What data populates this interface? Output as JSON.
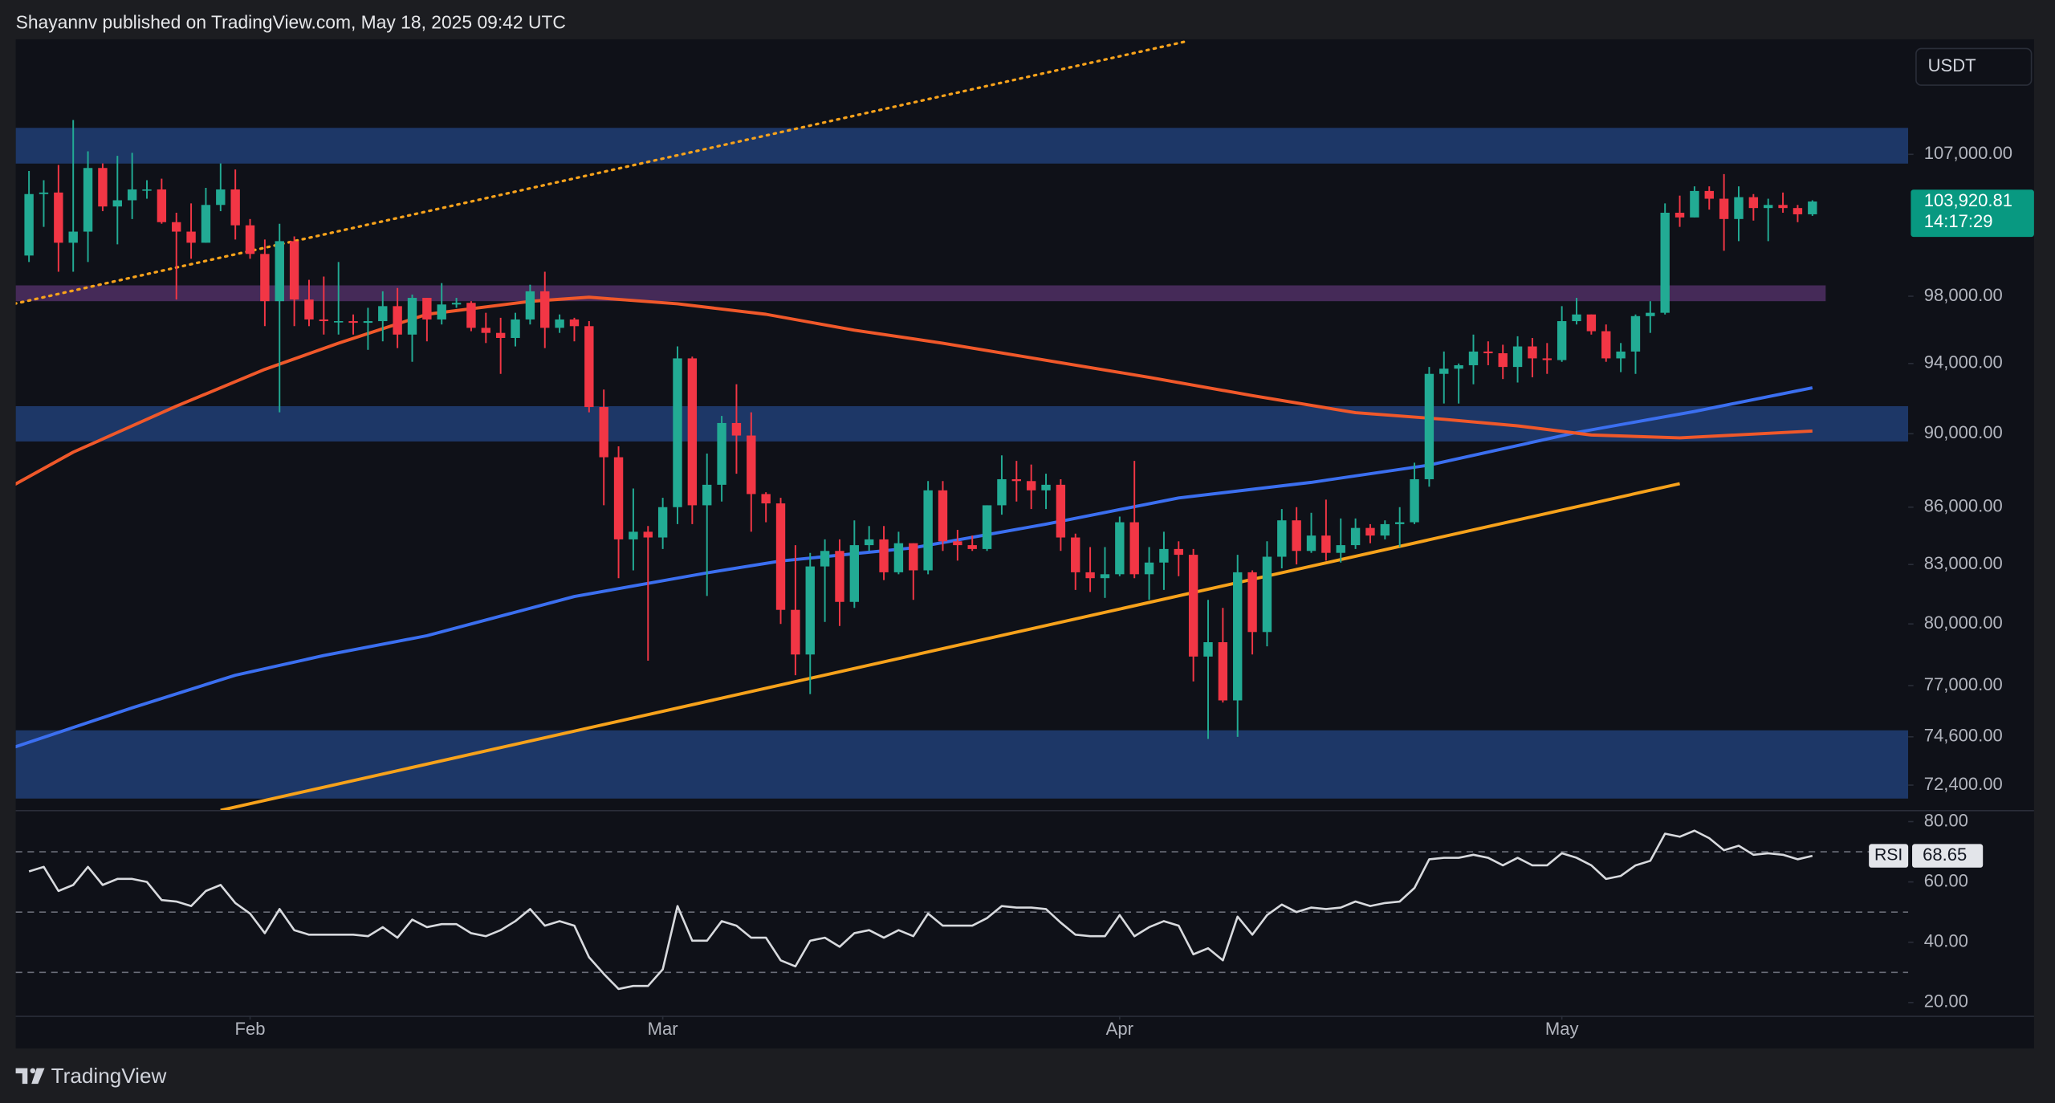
{
  "header": {
    "publisher": "Shayannv published on TradingView.com, May 18, 2025 09:42 UTC"
  },
  "currency": "USDT",
  "footer": {
    "brand": "TradingView"
  },
  "chart_data": [
    {
      "type": "candlestick",
      "log": true,
      "grid": false,
      "up_color": "#22ab94",
      "down_color": "#f23645",
      "xlim": [
        -0.9,
        127.5
      ],
      "ylim": [
        71760,
        114900
      ],
      "yticks": [
        {
          "value": 107000,
          "label": "107,000.00"
        },
        {
          "value": 98000,
          "label": "98,000.00"
        },
        {
          "value": 94000,
          "label": "94,000.00"
        },
        {
          "value": 90000,
          "label": "90,000.00"
        },
        {
          "value": 86000,
          "label": "86,000.00"
        },
        {
          "value": 83000,
          "label": "83,000.00"
        },
        {
          "value": 80000,
          "label": "80,000.00"
        },
        {
          "value": 77000,
          "label": "77,000.00"
        },
        {
          "value": 74600,
          "label": "74,600.00"
        },
        {
          "value": 72400,
          "label": "72,400.00"
        }
      ],
      "categories": [
        null,
        null,
        null,
        null,
        null,
        null,
        null,
        null,
        null,
        null,
        null,
        null,
        null,
        null,
        null,
        "Feb",
        null,
        null,
        null,
        null,
        null,
        null,
        null,
        null,
        null,
        null,
        null,
        null,
        null,
        null,
        null,
        null,
        null,
        null,
        null,
        null,
        null,
        null,
        null,
        null,
        null,
        null,
        null,
        "Mar",
        null,
        null,
        null,
        null,
        null,
        null,
        null,
        null,
        null,
        null,
        null,
        null,
        null,
        null,
        null,
        null,
        null,
        null,
        null,
        null,
        null,
        null,
        null,
        null,
        null,
        null,
        null,
        null,
        null,
        null,
        "Apr",
        null,
        null,
        null,
        null,
        null,
        null,
        null,
        null,
        null,
        null,
        null,
        null,
        null,
        null,
        null,
        null,
        null,
        null,
        null,
        null,
        null,
        null,
        null,
        null,
        null,
        null,
        null,
        null,
        null,
        "May",
        null,
        null,
        null,
        null,
        null,
        null,
        null,
        null,
        null,
        null,
        null,
        null,
        null,
        null,
        null,
        null,
        null
      ],
      "open": [
        100500,
        104400,
        104500,
        101300,
        102000,
        106100,
        103600,
        104000,
        104700,
        104700,
        102600,
        102000,
        101300,
        103700,
        104700,
        102400,
        100600,
        97700,
        101400,
        97800,
        96600,
        96500,
        96500,
        96400,
        96500,
        97400,
        95700,
        97900,
        96600,
        97500,
        97600,
        96100,
        95800,
        95500,
        96600,
        98300,
        96100,
        96600,
        96200,
        91500,
        88700,
        84300,
        84700,
        84400,
        86000,
        94300,
        86100,
        87200,
        90600,
        89900,
        86700,
        86200,
        80700,
        78500,
        82900,
        83700,
        81100,
        84000,
        84300,
        82600,
        84100,
        82700,
        86900,
        84200,
        84000,
        83800,
        86100,
        87500,
        87400,
        86900,
        87200,
        84400,
        82600,
        82300,
        82500,
        85200,
        82500,
        83100,
        83800,
        83500,
        78400,
        79100,
        76300,
        82600,
        79600,
        83400,
        85300,
        83700,
        84500,
        83600,
        84000,
        84900,
        84500,
        85100,
        85200,
        87500,
        93400,
        93700,
        93900,
        94700,
        94600,
        93800,
        95000,
        94300,
        94200,
        96500,
        96900,
        95900,
        94300,
        94700,
        96800,
        97000,
        103200,
        102900,
        104600,
        104100,
        102800,
        104200,
        103500,
        103700,
        103500,
        103100
      ],
      "high": [
        105900,
        105300,
        106300,
        109300,
        107200,
        106400,
        106900,
        107100,
        105300,
        105400,
        103200,
        103800,
        104800,
        106400,
        106000,
        102800,
        101500,
        102500,
        101700,
        99000,
        99200,
        100100,
        96900,
        97300,
        98300,
        98500,
        98100,
        97900,
        98800,
        97900,
        97700,
        97000,
        96700,
        97000,
        98700,
        99500,
        96900,
        96700,
        96500,
        92500,
        89300,
        87000,
        85000,
        86500,
        95000,
        94400,
        88900,
        91000,
        92800,
        91200,
        86800,
        86500,
        84000,
        83600,
        84300,
        84300,
        85300,
        85000,
        85000,
        84700,
        84100,
        87400,
        87400,
        84800,
        84500,
        86100,
        88800,
        88500,
        88300,
        87800,
        87500,
        84600,
        83900,
        83900,
        85500,
        88500,
        83900,
        84700,
        84200,
        83800,
        81200,
        80800,
        83500,
        82700,
        84200,
        85900,
        86000,
        85700,
        86400,
        85400,
        85400,
        85100,
        85300,
        86000,
        88400,
        93800,
        94700,
        94000,
        95700,
        95300,
        95100,
        95600,
        95500,
        95200,
        97400,
        97900,
        96900,
        96300,
        95200,
        96900,
        97700,
        103800,
        104300,
        104900,
        104900,
        105700,
        104900,
        104400,
        104100,
        104500,
        103700,
        104000
      ],
      "low": [
        100100,
        102300,
        99500,
        99500,
        100100,
        103300,
        101200,
        102800,
        104100,
        102500,
        97800,
        100300,
        101300,
        103300,
        101500,
        100300,
        96200,
        91200,
        96200,
        96200,
        95700,
        95700,
        95700,
        94800,
        95300,
        94900,
        94100,
        95300,
        96300,
        97300,
        95900,
        95200,
        93400,
        95000,
        96300,
        94900,
        95800,
        95300,
        91200,
        86100,
        82300,
        82700,
        78200,
        83800,
        85100,
        85100,
        81400,
        86300,
        87800,
        84700,
        85200,
        80000,
        77500,
        76600,
        80100,
        79900,
        80800,
        83700,
        82200,
        82500,
        81200,
        82500,
        83700,
        83200,
        83700,
        83700,
        85600,
        86300,
        85900,
        85900,
        83700,
        81700,
        81600,
        81300,
        82400,
        82300,
        81200,
        81700,
        82400,
        77200,
        74500,
        76200,
        74600,
        78500,
        78900,
        82800,
        83000,
        83600,
        83200,
        83100,
        83800,
        84100,
        84300,
        83900,
        85100,
        87100,
        91700,
        91700,
        92800,
        93900,
        93100,
        92900,
        93200,
        93400,
        94100,
        96300,
        95700,
        94100,
        93500,
        93400,
        95800,
        96900,
        102300,
        102900,
        103400,
        100800,
        101400,
        102700,
        101400,
        103200,
        102600,
        103000
      ],
      "close": [
        104400,
        104500,
        101300,
        102000,
        106100,
        103600,
        104000,
        104700,
        104700,
        102600,
        102000,
        101300,
        103700,
        104700,
        102400,
        100600,
        97700,
        101400,
        97800,
        96600,
        96500,
        96500,
        96400,
        96500,
        97400,
        95700,
        97900,
        96600,
        97500,
        97600,
        96100,
        95800,
        95500,
        96600,
        98300,
        96100,
        96600,
        96200,
        91500,
        88700,
        84300,
        84700,
        84400,
        86000,
        94300,
        86100,
        87200,
        90600,
        89900,
        86700,
        86200,
        80700,
        78500,
        82900,
        83700,
        81100,
        84000,
        84300,
        82600,
        84100,
        82700,
        86900,
        84200,
        84000,
        83800,
        86100,
        87500,
        87400,
        86900,
        87200,
        84400,
        82600,
        82300,
        82500,
        85200,
        82500,
        83100,
        83800,
        83500,
        78400,
        79100,
        76300,
        82600,
        79600,
        83400,
        85300,
        83700,
        84500,
        83600,
        84000,
        84900,
        84500,
        85100,
        85200,
        87500,
        93400,
        93700,
        93900,
        94700,
        94600,
        93800,
        95000,
        94300,
        94200,
        96500,
        96900,
        95900,
        94300,
        94700,
        96800,
        97000,
        103200,
        102900,
        104600,
        104100,
        102800,
        104200,
        103500,
        103700,
        103500,
        103100,
        103920.81
      ],
      "last_label": "103,920.81",
      "countdown": "14:17:29",
      "last_color": "#089981",
      "zones": [
        {
          "range": [
            106390,
            108770
          ],
          "x": [
            -0.9,
            127.5
          ],
          "color": "#1f3c70"
        },
        {
          "range": [
            97700,
            98660
          ],
          "x": [
            -0.9,
            121.9
          ],
          "color": "#4b2d5f"
        },
        {
          "range": [
            89570,
            91550
          ],
          "x": [
            -0.9,
            127.5
          ],
          "color": "#1f3c70"
        },
        {
          "range": [
            71800,
            74900
          ],
          "x": [
            -0.9,
            127.5
          ],
          "color": "#1f3c70"
        }
      ],
      "overlays": [
        {
          "color": "#3b6ff0",
          "style": "solid",
          "x": [
            -1,
            7,
            14,
            20,
            27,
            37,
            46,
            51,
            60,
            69,
            78,
            87,
            95,
            105,
            113,
            121
          ],
          "values": [
            74120,
            75950,
            77500,
            78450,
            79420,
            81370,
            82570,
            83180,
            83860,
            85100,
            86490,
            87330,
            88270,
            90070,
            91250,
            92600
          ]
        },
        {
          "color": "#f0582a",
          "style": "solid",
          "x": [
            -1,
            3,
            10,
            16,
            21,
            27,
            34,
            38,
            44,
            50,
            56,
            62,
            69,
            76,
            83,
            90,
            96,
            101,
            106,
            112,
            121
          ],
          "values": [
            87200,
            88980,
            91550,
            93660,
            95190,
            96910,
            97690,
            97940,
            97540,
            96910,
            95960,
            95190,
            94190,
            93200,
            92150,
            91180,
            90810,
            90440,
            89930,
            89770,
            90150
          ]
        },
        {
          "color": "#f7a21b",
          "style": "dotted",
          "x": [
            -1,
            78.5
          ],
          "values": [
            97540,
            114750
          ]
        },
        {
          "color": "#f7a21b",
          "style": "solid",
          "x": [
            13,
            112
          ],
          "values": [
            71280,
            87260
          ]
        }
      ]
    },
    {
      "type": "line",
      "label": "RSI",
      "color": "#d8dade",
      "value_box_color": "#e3e5ea",
      "ylim": [
        16.5,
        83
      ],
      "yticks": [
        {
          "value": 80,
          "label": "80.00"
        },
        {
          "value": 60,
          "label": "60.00"
        },
        {
          "value": 40,
          "label": "40.00"
        },
        {
          "value": 20,
          "label": "20.00"
        }
      ],
      "levels": [
        70,
        50,
        30
      ],
      "values": [
        63.5,
        65,
        57,
        59,
        65,
        59,
        61,
        61,
        60,
        54,
        53.5,
        52,
        57,
        59,
        53,
        49.5,
        43,
        51,
        44,
        42.5,
        42.5,
        42.5,
        42.5,
        42,
        45,
        41.5,
        47.5,
        45,
        46,
        46,
        43,
        42,
        44,
        47,
        51,
        45.5,
        47,
        45.5,
        35,
        29.5,
        24.5,
        25.5,
        25.5,
        31,
        52,
        40.5,
        40.5,
        47,
        45.5,
        41.5,
        41.5,
        34,
        32,
        40.5,
        41.5,
        38.5,
        43,
        44,
        41.5,
        44,
        42,
        49.5,
        45.5,
        45.5,
        45.5,
        48,
        52,
        51.5,
        51.5,
        51,
        46.5,
        42.5,
        42,
        42,
        49,
        42,
        45,
        47,
        45.5,
        36,
        38,
        34,
        48.5,
        42.5,
        49,
        52.5,
        50,
        51.5,
        51,
        51.5,
        53.5,
        52,
        53,
        53.5,
        58,
        67.5,
        68,
        68,
        69,
        68,
        65.5,
        68,
        65.5,
        65.5,
        69.5,
        68,
        65.5,
        61,
        62,
        65.5,
        67,
        76,
        75,
        77,
        74.5,
        70.5,
        72,
        69,
        69.5,
        69,
        67.5,
        68.65
      ]
    }
  ]
}
